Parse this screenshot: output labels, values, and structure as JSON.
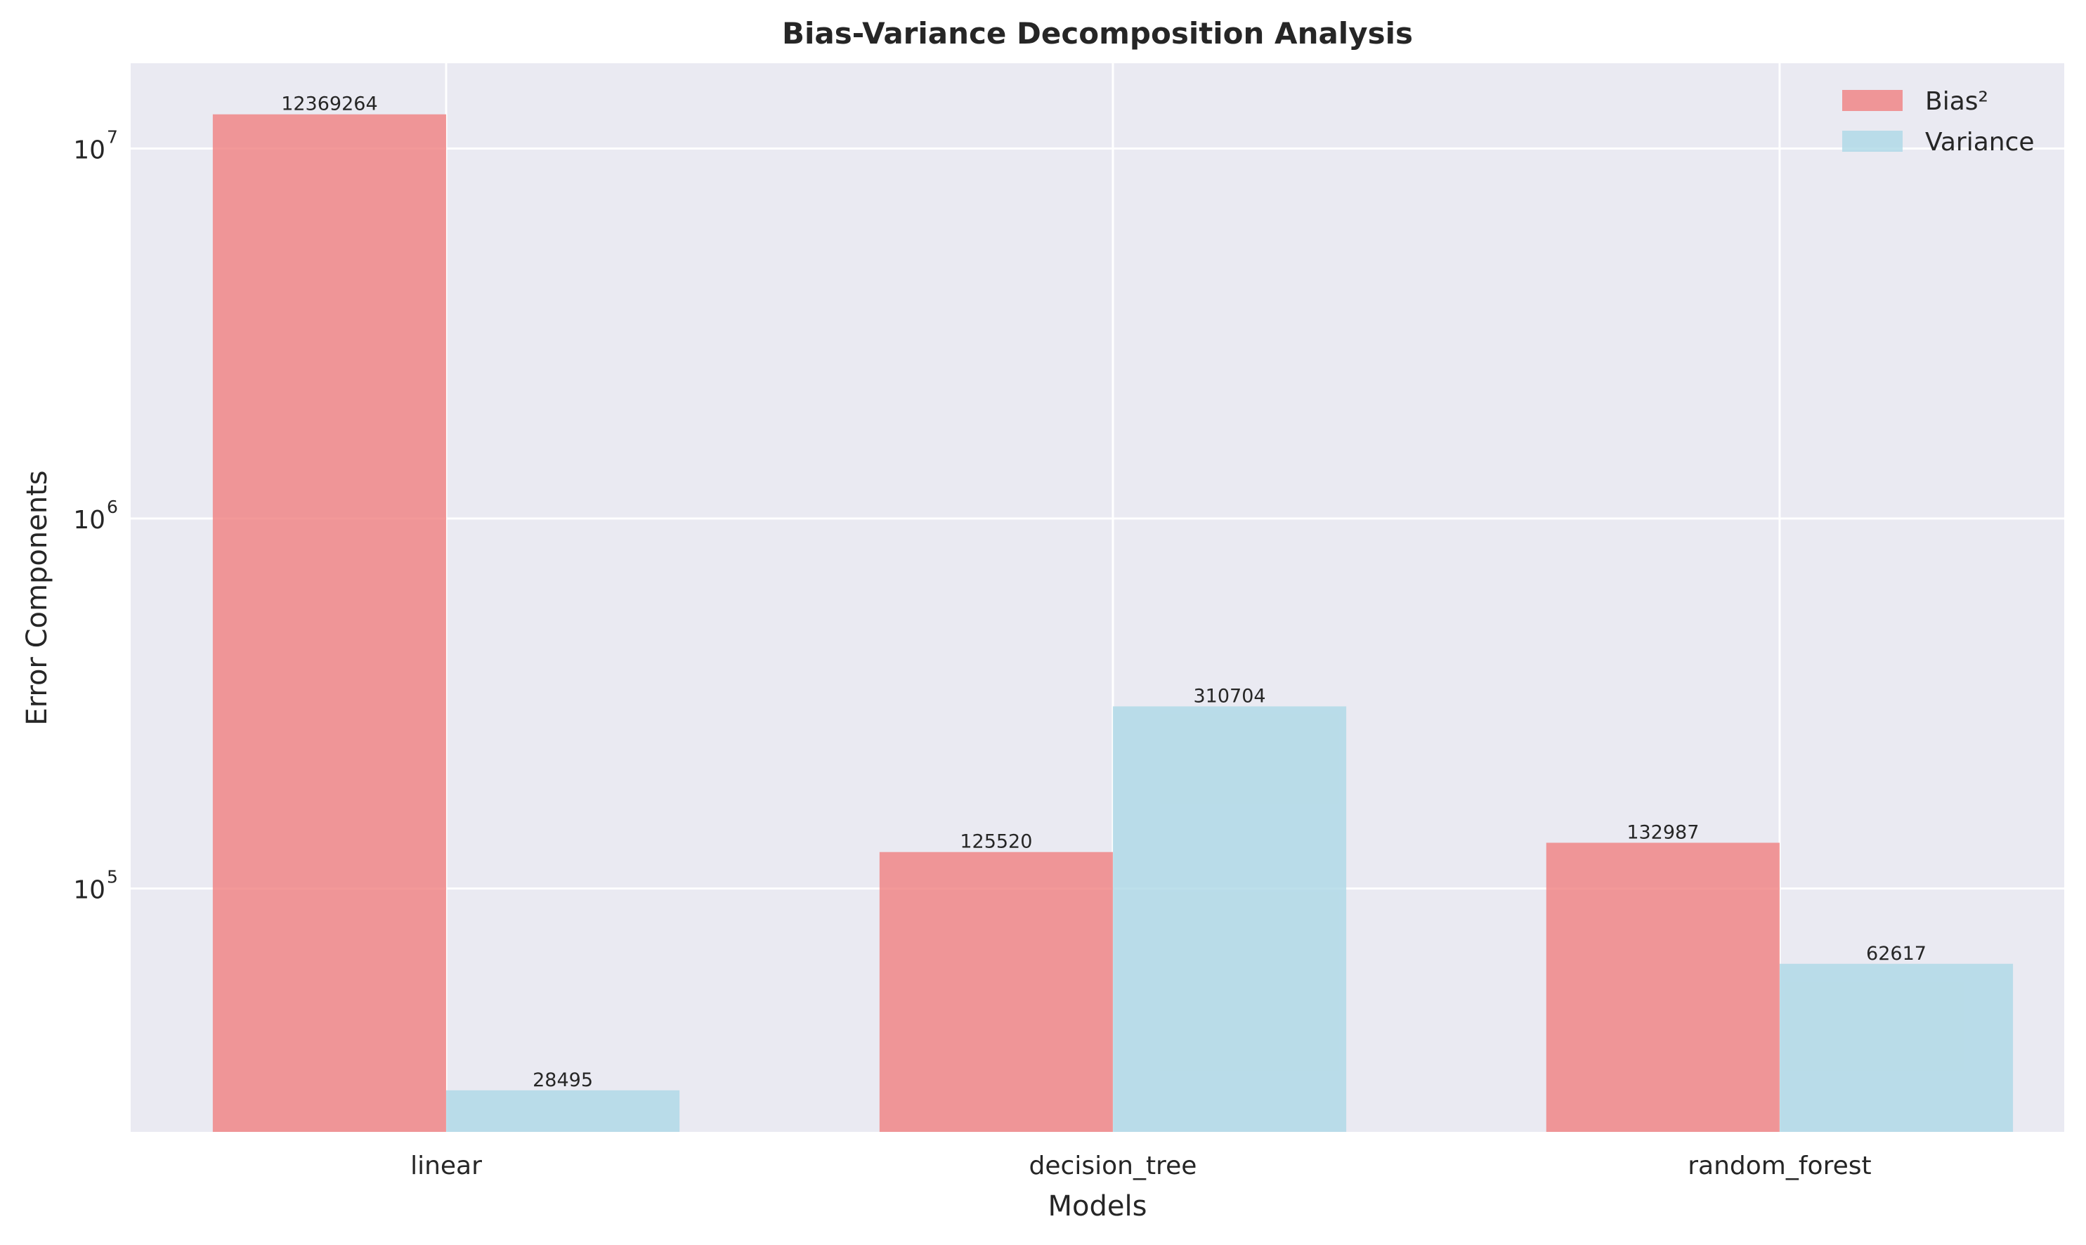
{
  "chart_data": {
    "type": "bar",
    "title": "Bias-Variance Decomposition Analysis",
    "xlabel": "Models",
    "ylabel": "Error Components",
    "yscale": "log",
    "ylim": [
      22000,
      17000000
    ],
    "yticks": [
      {
        "value": 100000,
        "base": "10",
        "exp": "5"
      },
      {
        "value": 1000000,
        "base": "10",
        "exp": "6"
      },
      {
        "value": 10000000,
        "base": "10",
        "exp": "7"
      }
    ],
    "categories": [
      "linear",
      "decision_tree",
      "random_forest"
    ],
    "series": [
      {
        "name": "Bias²",
        "color": "#f08080",
        "values": [
          12369264,
          125520,
          132987
        ],
        "labels": [
          "12369264",
          "125520",
          "132987"
        ]
      },
      {
        "name": "Variance",
        "color": "#add8e6",
        "values": [
          28495,
          310704,
          62617
        ],
        "labels": [
          "28495",
          "310704",
          "62617"
        ]
      }
    ],
    "grid": true,
    "legend_position": "top-right",
    "colors": {
      "background": "#eaeaf2",
      "grid": "#ffffff",
      "text": "#262626"
    }
  }
}
